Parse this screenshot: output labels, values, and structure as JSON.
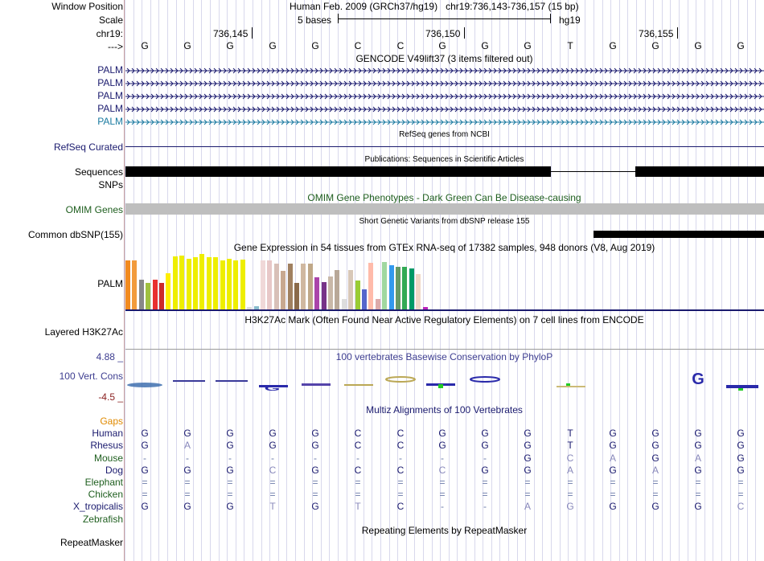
{
  "header": {
    "window_position_label": "Window Position",
    "scale_label": "Scale",
    "chrom_label": "chr19:",
    "seq_label": "--->",
    "position_text": "Human Feb. 2009 (GRCh37/hg19)   chr19:736,143-736,157 (15 bp)",
    "scale_text": "5 bases",
    "assembly": "hg19",
    "ticks": [
      {
        "label": "736,145",
        "x": 313
      },
      {
        "label": "736,150",
        "x": 577
      },
      {
        "label": "736,155",
        "x": 842
      }
    ]
  },
  "base_x": [
    180,
    233,
    286,
    339,
    392,
    445,
    498,
    550,
    603,
    656,
    709,
    762,
    815,
    868,
    921
  ],
  "sequence": [
    "G",
    "G",
    "G",
    "G",
    "G",
    "C",
    "C",
    "G",
    "G",
    "G",
    "T",
    "G",
    "G",
    "G",
    "G"
  ],
  "tracks": {
    "gencode": {
      "title": "GENCODE V49lift37 (3 items filtered out)",
      "items": [
        "PALM",
        "PALM",
        "PALM",
        "PALM",
        "PALM"
      ]
    },
    "refseq": {
      "title": "RefSeq genes from NCBI",
      "label": "RefSeq Curated"
    },
    "publications": {
      "title": "Publications: Sequences in Scientific Articles",
      "label1": "Sequences",
      "label2": "SNPs"
    },
    "omim": {
      "title": "OMIM Gene Phenotypes - Dark Green Can Be Disease-causing",
      "label": "OMIM Genes"
    },
    "dbsnp": {
      "title": "Short Genetic Variants from dbSNP release 155",
      "label": "Common dbSNP(155)"
    },
    "gtex": {
      "title": "Gene Expression in 54 tissues from GTEx RNA-seq of 17382 samples, 948 donors (V8, Aug 2019)",
      "label": "PALM",
      "bars": [
        {
          "v": 0.92,
          "c": "#f28a1e"
        },
        {
          "v": 0.92,
          "c": "#f29b3c"
        },
        {
          "v": 0.56,
          "c": "#888888"
        },
        {
          "v": 0.5,
          "c": "#a0c040"
        },
        {
          "v": 0.56,
          "c": "#e83030"
        },
        {
          "v": 0.5,
          "c": "#cc2a2a"
        },
        {
          "v": 0.68,
          "c": "#ffee00"
        },
        {
          "v": 1.0,
          "c": "#eeee00"
        },
        {
          "v": 1.02,
          "c": "#eeee00"
        },
        {
          "v": 0.96,
          "c": "#eeee00"
        },
        {
          "v": 0.98,
          "c": "#eeee00"
        },
        {
          "v": 1.04,
          "c": "#eeee00"
        },
        {
          "v": 0.98,
          "c": "#eeee00"
        },
        {
          "v": 0.98,
          "c": "#eeee00"
        },
        {
          "v": 0.92,
          "c": "#eeee00"
        },
        {
          "v": 0.96,
          "c": "#eeee00"
        },
        {
          "v": 0.92,
          "c": "#eeee00"
        },
        {
          "v": 0.94,
          "c": "#eeee00"
        },
        {
          "v": 0.04,
          "c": "#dddddd"
        },
        {
          "v": 0.06,
          "c": "#88bbcc"
        },
        {
          "v": 0.92,
          "c": "#f0d8d8"
        },
        {
          "v": 0.92,
          "c": "#e8c8c8"
        },
        {
          "v": 0.86,
          "c": "#d8c0b8"
        },
        {
          "v": 0.72,
          "c": "#c8a890"
        },
        {
          "v": 0.86,
          "c": "#a08060"
        },
        {
          "v": 0.5,
          "c": "#8a6a4a"
        },
        {
          "v": 0.86,
          "c": "#d0b8a0"
        },
        {
          "v": 0.86,
          "c": "#c0a888"
        },
        {
          "v": 0.6,
          "c": "#aa44aa"
        },
        {
          "v": 0.52,
          "c": "#773388"
        },
        {
          "v": 0.62,
          "c": "#c8b8a8"
        },
        {
          "v": 0.74,
          "c": "#b8a898"
        },
        {
          "v": 0.2,
          "c": "#dddddd"
        },
        {
          "v": 0.74,
          "c": "#d8c8b8"
        },
        {
          "v": 0.54,
          "c": "#99cc33"
        },
        {
          "v": 0.38,
          "c": "#5566cc"
        },
        {
          "v": 0.88,
          "c": "#ffbbaa"
        },
        {
          "v": 0.2,
          "c": "#ddaaaa"
        },
        {
          "v": 0.9,
          "c": "#a0d8a0"
        },
        {
          "v": 0.84,
          "c": "#3399ee"
        },
        {
          "v": 0.8,
          "c": "#669966"
        },
        {
          "v": 0.8,
          "c": "#33aa55"
        },
        {
          "v": 0.78,
          "c": "#009966"
        },
        {
          "v": 0.66,
          "c": "#f0d8c8"
        },
        {
          "v": 0.04,
          "c": "#bb22bb"
        }
      ]
    },
    "h3k27ac": {
      "title": "H3K27Ac Mark (Often Found Near Active Regulatory Elements) on 7 cell lines from ENCODE",
      "label": "Layered H3K27Ac"
    },
    "phylop": {
      "title": "100 vertebrates Basewise Conservation by PhyloP",
      "label": "100 Vert. Cons",
      "max": "4.88 _",
      "min": "-4.5 _"
    },
    "multiz": {
      "title": "Multiz Alignments of 100 Vertebrates",
      "species": [
        {
          "name": "Gaps",
          "color": "#e08a00",
          "seq": null
        },
        {
          "name": "Human",
          "color": "#1a1a6e",
          "seq": [
            "G",
            "G",
            "G",
            "G",
            "G",
            "C",
            "C",
            "G",
            "G",
            "G",
            "T",
            "G",
            "G",
            "G",
            "G"
          ]
        },
        {
          "name": "Rhesus",
          "color": "#1a1a6e",
          "seq": [
            "G",
            "A",
            "G",
            "G",
            "G",
            "C",
            "C",
            "G",
            "G",
            "G",
            "T",
            "G",
            "G",
            "G",
            "G"
          ]
        },
        {
          "name": "Mouse",
          "color": "#1e5e1e",
          "seq": [
            "-",
            "-",
            "-",
            "-",
            "-",
            "-",
            "-",
            "-",
            "-",
            "G",
            "C",
            "A",
            "G",
            "A",
            "G"
          ]
        },
        {
          "name": "Dog",
          "color": "#1a1a6e",
          "seq": [
            "G",
            "G",
            "G",
            "C",
            "G",
            "C",
            "C",
            "C",
            "G",
            "G",
            "A",
            "G",
            "A",
            "G",
            "G"
          ]
        },
        {
          "name": "Elephant",
          "color": "#1e5e1e",
          "seq": [
            "=",
            "=",
            "=",
            "=",
            "=",
            "=",
            "=",
            "=",
            "=",
            "=",
            "=",
            "=",
            "=",
            "=",
            "="
          ]
        },
        {
          "name": "Chicken",
          "color": "#1e5e1e",
          "seq": [
            "=",
            "=",
            "=",
            "=",
            "=",
            "=",
            "=",
            "=",
            "=",
            "=",
            "=",
            "=",
            "=",
            "=",
            "="
          ]
        },
        {
          "name": "X_tropicalis",
          "color": "#1a1a6e",
          "seq": [
            "G",
            "G",
            "G",
            "T",
            "G",
            "T",
            "C",
            "-",
            "-",
            "A",
            "G",
            "G",
            "G",
            "G",
            "C"
          ]
        },
        {
          "name": "Zebrafish",
          "color": "#1e5e1e",
          "seq": null
        }
      ]
    },
    "repeatmasker": {
      "title": "Repeating Elements by RepeatMasker",
      "label": "RepeatMasker"
    }
  }
}
